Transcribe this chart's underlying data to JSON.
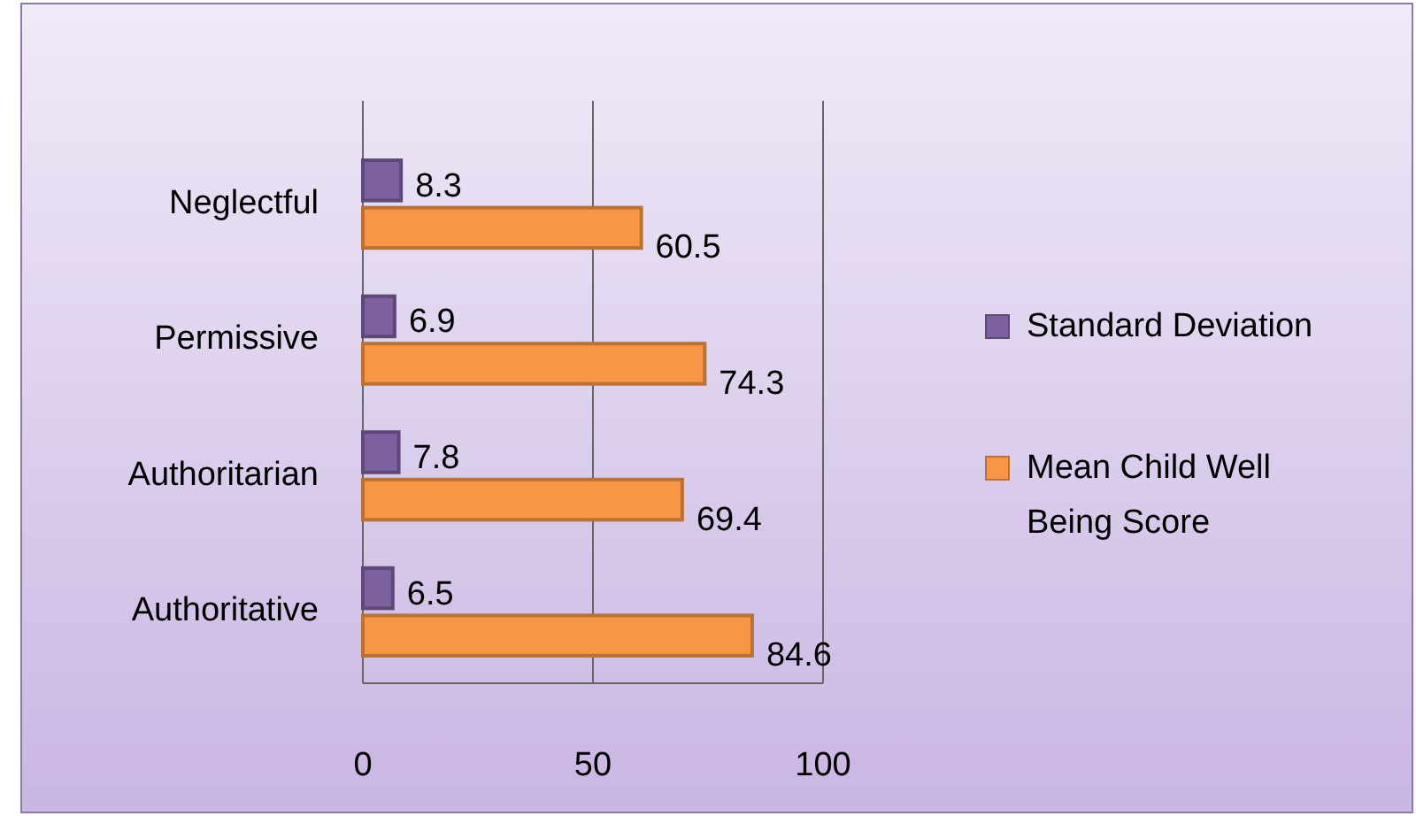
{
  "chart_data": {
    "type": "bar",
    "orientation": "horizontal",
    "categories": [
      "Neglectful",
      "Permissive",
      "Authoritarian",
      "Authoritative"
    ],
    "series": [
      {
        "name": "Standard Deviation",
        "color": "#7d60a0",
        "values": [
          8.3,
          6.9,
          7.8,
          6.5
        ]
      },
      {
        "name": "Mean Child Well Being Score",
        "color": "#f79646",
        "values": [
          60.5,
          74.3,
          69.4,
          84.6
        ]
      }
    ],
    "xlim": [
      0,
      100
    ],
    "xticks": [
      0,
      50,
      100
    ],
    "grid": "x",
    "legend": "right",
    "data_labels": true
  }
}
